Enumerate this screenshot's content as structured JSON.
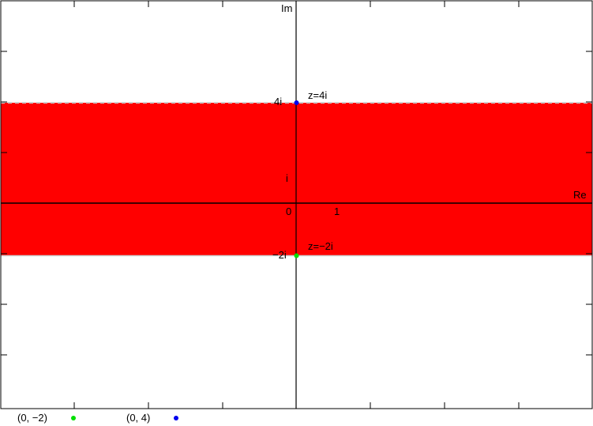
{
  "colors": {
    "region": "#ff0000",
    "point_bottom": "#00e000",
    "point_top": "#0000ee",
    "axis": "#000000",
    "boundary": "#cccccc"
  },
  "plane": {
    "xlim": [
      -4,
      4
    ],
    "ylim": [
      -4,
      4
    ],
    "axis_x_label": "Re",
    "axis_y_label": "Im",
    "origin_label": "0",
    "x_tick_label": "1",
    "y_tick_labels": {
      "i": "i",
      "top": "4i",
      "bottom": "−2i"
    },
    "region": {
      "im_min": -1,
      "im_max": 2
    },
    "points": [
      {
        "re": 0,
        "im": 2,
        "label": "z=4i",
        "color": "#0000ee"
      },
      {
        "re": 0,
        "im": -1,
        "label": "z=−2i",
        "color": "#00e000"
      }
    ]
  },
  "legend": [
    {
      "label": "(0, −2)",
      "color": "#00e000"
    },
    {
      "label": "(0, 4)",
      "color": "#0000ee"
    }
  ]
}
